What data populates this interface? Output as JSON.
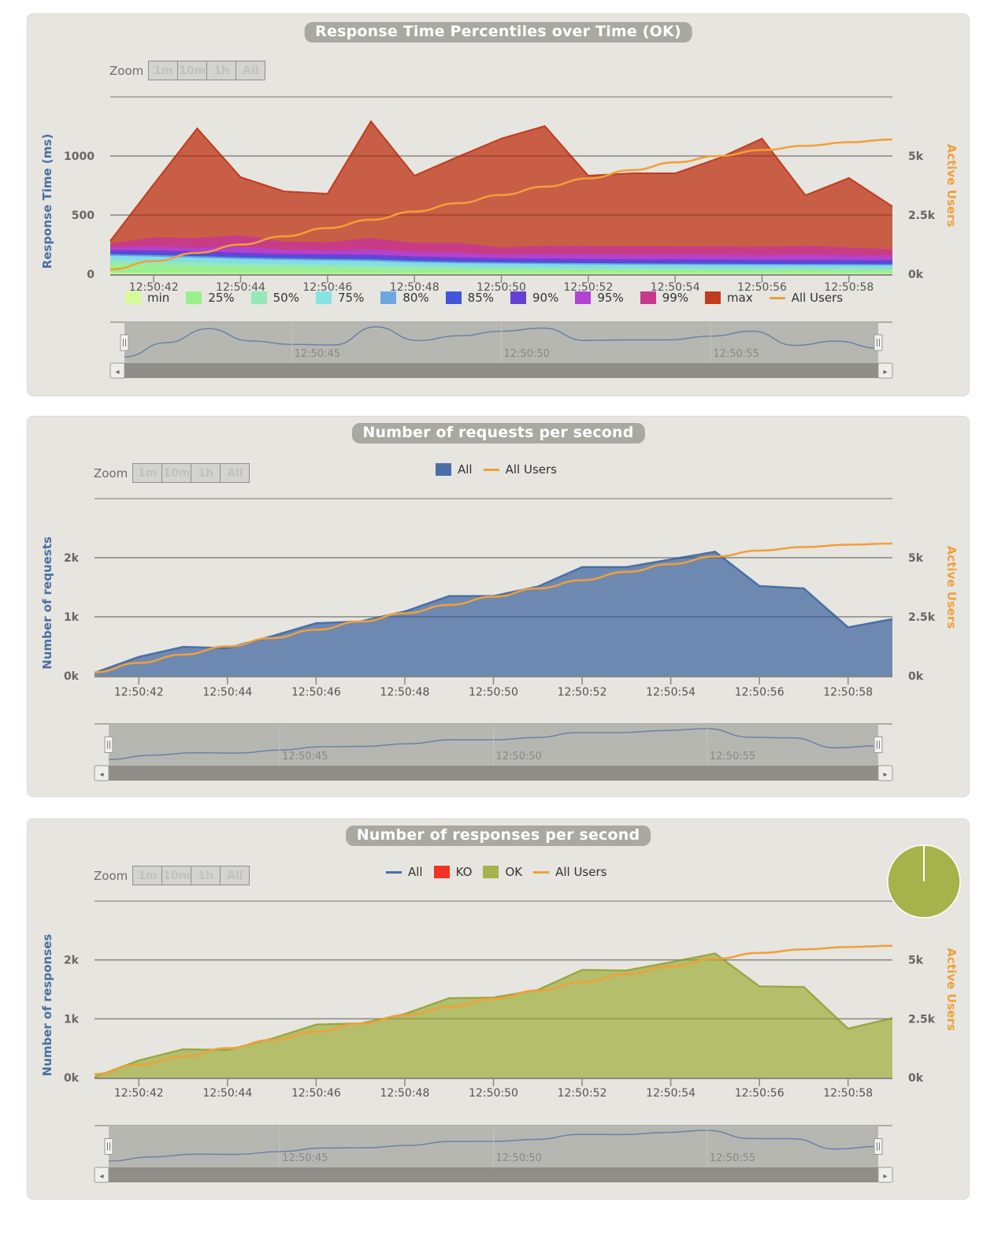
{
  "chart_data": [
    {
      "type": "area",
      "title": "Response Time Percentiles over Time (OK)",
      "zoom": {
        "label": "Zoom",
        "buttons": [
          "1m",
          "10m",
          "1h",
          "All"
        ]
      },
      "x": [
        "12:50:41",
        "12:50:42",
        "12:50:43",
        "12:50:44",
        "12:50:45",
        "12:50:46",
        "12:50:47",
        "12:50:48",
        "12:50:49",
        "12:50:50",
        "12:50:51",
        "12:50:52",
        "12:50:53",
        "12:50:54",
        "12:50:55",
        "12:50:56",
        "12:50:57",
        "12:50:58",
        "12:50:59"
      ],
      "x_tick_labels": [
        "12:50:42",
        "12:50:44",
        "12:50:46",
        "12:50:48",
        "12:50:50",
        "12:50:52",
        "12:50:54",
        "12:50:56",
        "12:50:58"
      ],
      "ylabel": "Response Time (ms)",
      "y_ticks": [
        "0",
        "500",
        "1000"
      ],
      "ylim": [
        0,
        1500
      ],
      "y2label": "Active Users",
      "y2_ticks": [
        "0k",
        "2.5k",
        "5k"
      ],
      "y2lim": [
        0,
        7500
      ],
      "grid": true,
      "legend_position": "bottom",
      "series": [
        {
          "name": "min",
          "color": "#d7fb98",
          "values": [
            12,
            10,
            10,
            9,
            9,
            9,
            9,
            8,
            8,
            8,
            8,
            8,
            8,
            8,
            8,
            8,
            8,
            8,
            8
          ]
        },
        {
          "name": "25%",
          "color": "#9af08c",
          "values": [
            90,
            80,
            70,
            62,
            57,
            54,
            50,
            45,
            42,
            40,
            38,
            36,
            35,
            34,
            34,
            33,
            33,
            32,
            32
          ]
        },
        {
          "name": "50%",
          "color": "#96e8b8",
          "values": [
            120,
            110,
            100,
            90,
            85,
            80,
            76,
            68,
            63,
            60,
            57,
            55,
            53,
            52,
            51,
            50,
            50,
            49,
            48
          ]
        },
        {
          "name": "75%",
          "color": "#85e3e3",
          "values": [
            155,
            148,
            138,
            128,
            120,
            115,
            110,
            98,
            92,
            88,
            85,
            82,
            80,
            78,
            77,
            76,
            75,
            74,
            73
          ]
        },
        {
          "name": "80%",
          "color": "#6ea7e0",
          "values": [
            168,
            162,
            152,
            142,
            134,
            128,
            124,
            112,
            104,
            100,
            96,
            93,
            91,
            89,
            88,
            87,
            86,
            85,
            84
          ]
        },
        {
          "name": "85%",
          "color": "#4156d8",
          "values": [
            185,
            180,
            170,
            160,
            150,
            145,
            142,
            128,
            120,
            115,
            112,
            108,
            106,
            104,
            103,
            102,
            101,
            100,
            98
          ]
        },
        {
          "name": "90%",
          "color": "#6640d5",
          "values": [
            205,
            200,
            192,
            182,
            172,
            168,
            165,
            150,
            142,
            135,
            132,
            128,
            126,
            124,
            123,
            122,
            121,
            120,
            118
          ]
        },
        {
          "name": "95%",
          "color": "#b042d4",
          "values": [
            225,
            235,
            225,
            230,
            205,
            200,
            210,
            190,
            182,
            165,
            170,
            168,
            166,
            164,
            163,
            162,
            165,
            160,
            155
          ]
        },
        {
          "name": "99%",
          "color": "#c8398e",
          "values": [
            260,
            310,
            305,
            330,
            275,
            270,
            305,
            265,
            265,
            225,
            240,
            238,
            237,
            235,
            233,
            232,
            240,
            225,
            210
          ]
        },
        {
          "name": "max",
          "color": "#c13c1e",
          "values": [
            280,
            760,
            1233,
            820,
            700,
            680,
            1293,
            833,
            993,
            1147,
            1253,
            833,
            853,
            853,
            980,
            1147,
            667,
            813,
            573
          ]
        },
        {
          "name": "All Users",
          "color": "#f0a03a",
          "axis": "right",
          "values": [
            200,
            550,
            900,
            1250,
            1600,
            1950,
            2300,
            2650,
            3000,
            3350,
            3700,
            4050,
            4400,
            4730,
            5000,
            5250,
            5430,
            5580,
            5700
          ]
        }
      ],
      "navigator": {
        "tick_labels": [
          "12:50:45",
          "12:50:50",
          "12:50:55"
        ]
      }
    },
    {
      "type": "area",
      "title": "Number of requests per second",
      "zoom": {
        "label": "Zoom",
        "buttons": [
          "1m",
          "10m",
          "1h",
          "All"
        ]
      },
      "x": [
        "12:50:41",
        "12:50:42",
        "12:50:43",
        "12:50:44",
        "12:50:45",
        "12:50:46",
        "12:50:47",
        "12:50:48",
        "12:50:49",
        "12:50:50",
        "12:50:51",
        "12:50:52",
        "12:50:53",
        "12:50:54",
        "12:50:55",
        "12:50:56",
        "12:50:57",
        "12:50:58",
        "12:50:59"
      ],
      "x_tick_labels": [
        "12:50:42",
        "12:50:44",
        "12:50:46",
        "12:50:48",
        "12:50:50",
        "12:50:52",
        "12:50:54",
        "12:50:56",
        "12:50:58"
      ],
      "ylabel": "Number of requests",
      "y_ticks": [
        "0k",
        "1k",
        "2k"
      ],
      "ylim": [
        0,
        3000
      ],
      "y2label": "Active Users",
      "y2_ticks": [
        "0k",
        "2.5k",
        "5k"
      ],
      "y2lim": [
        0,
        7500
      ],
      "grid": true,
      "legend_position": "top",
      "series": [
        {
          "name": "All",
          "color": "#4a6fa5",
          "values": [
            50,
            320,
            490,
            470,
            670,
            890,
            920,
            1090,
            1350,
            1350,
            1510,
            1840,
            1840,
            1970,
            2100,
            1520,
            1480,
            820,
            960
          ]
        },
        {
          "name": "All Users",
          "color": "#f0a03a",
          "axis": "right",
          "values": [
            150,
            550,
            900,
            1250,
            1600,
            1950,
            2300,
            2650,
            3000,
            3350,
            3700,
            4050,
            4400,
            4730,
            5050,
            5300,
            5450,
            5550,
            5600
          ]
        }
      ],
      "navigator": {
        "tick_labels": [
          "12:50:45",
          "12:50:50",
          "12:50:55"
        ]
      }
    },
    {
      "type": "area",
      "title": "Number of responses per second",
      "zoom": {
        "label": "Zoom",
        "buttons": [
          "1m",
          "10m",
          "1h",
          "All"
        ]
      },
      "x": [
        "12:50:41",
        "12:50:42",
        "12:50:43",
        "12:50:44",
        "12:50:45",
        "12:50:46",
        "12:50:47",
        "12:50:48",
        "12:50:49",
        "12:50:50",
        "12:50:51",
        "12:50:52",
        "12:50:53",
        "12:50:54",
        "12:50:55",
        "12:50:56",
        "12:50:57",
        "12:50:58",
        "12:50:59"
      ],
      "x_tick_labels": [
        "12:50:42",
        "12:50:44",
        "12:50:46",
        "12:50:48",
        "12:50:50",
        "12:50:52",
        "12:50:54",
        "12:50:56",
        "12:50:58"
      ],
      "ylabel": "Number of responses",
      "y_ticks": [
        "0k",
        "1k",
        "2k"
      ],
      "ylim": [
        0,
        3000
      ],
      "y2label": "Active Users",
      "y2_ticks": [
        "0k",
        "2.5k",
        "5k"
      ],
      "y2lim": [
        0,
        7500
      ],
      "grid": true,
      "legend_position": "top",
      "series": [
        {
          "name": "All",
          "color": "#4a6fa5",
          "type": "line",
          "values": [
            10,
            290,
            480,
            470,
            660,
            900,
            920,
            1080,
            1350,
            1360,
            1490,
            1830,
            1820,
            1960,
            2110,
            1550,
            1540,
            830,
            1010
          ]
        },
        {
          "name": "KO",
          "color": "#f03424",
          "values": [
            0,
            0,
            0,
            0,
            0,
            0,
            0,
            0,
            0,
            0,
            0,
            0,
            0,
            0,
            0,
            0,
            0,
            0,
            0
          ]
        },
        {
          "name": "OK",
          "color": "#a5b34a",
          "values": [
            10,
            290,
            480,
            470,
            660,
            900,
            920,
            1080,
            1350,
            1360,
            1490,
            1830,
            1820,
            1960,
            2110,
            1550,
            1540,
            830,
            1010
          ]
        },
        {
          "name": "All Users",
          "color": "#f0a03a",
          "axis": "right",
          "values": [
            150,
            550,
            900,
            1250,
            1600,
            1950,
            2300,
            2650,
            3000,
            3350,
            3700,
            4050,
            4400,
            4730,
            5050,
            5300,
            5450,
            5550,
            5600
          ]
        }
      ],
      "pie": {
        "slices": [
          {
            "name": "OK",
            "value": 100,
            "color": "#a5b34a"
          },
          {
            "name": "KO",
            "value": 0,
            "color": "#f03424"
          }
        ]
      },
      "navigator": {
        "tick_labels": [
          "12:50:45",
          "12:50:50",
          "12:50:55"
        ]
      }
    }
  ]
}
